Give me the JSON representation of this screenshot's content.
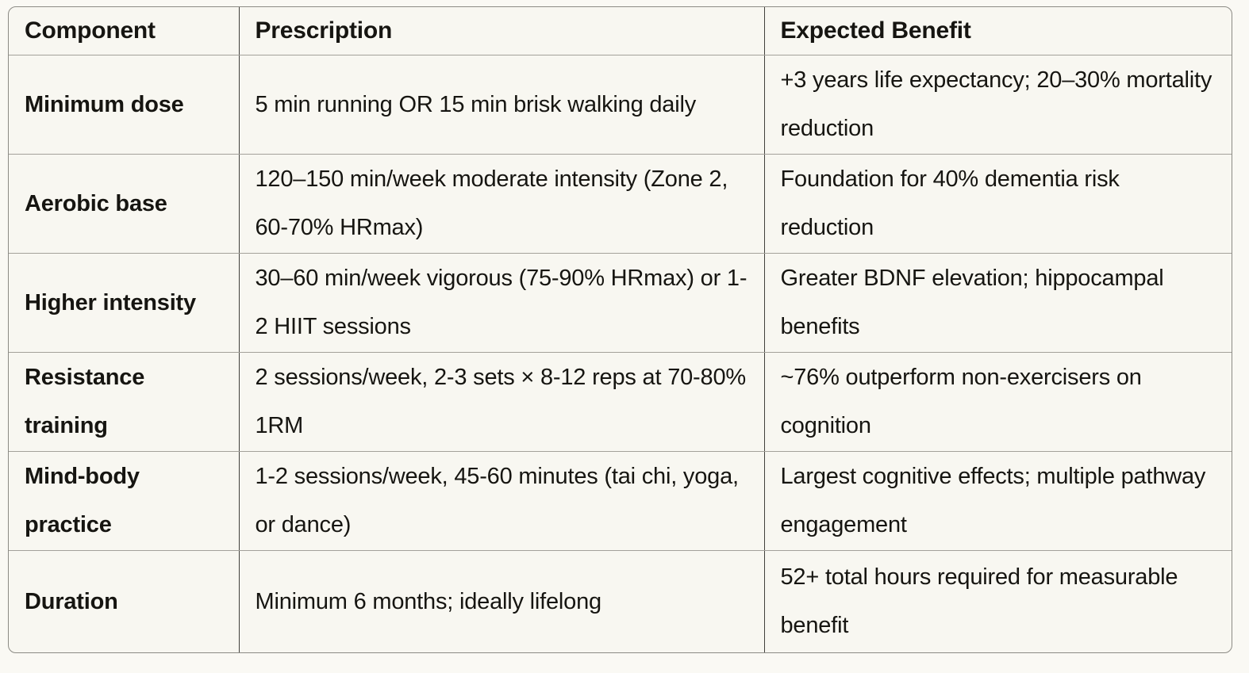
{
  "page": {
    "background_color": "#faf9f4",
    "text_color": "#161511",
    "table_outer_border_color": "#8c8b85",
    "row_border_color": "#a3a19a",
    "column_border_color": "#41403c",
    "cell_background_color": "#f8f7f1"
  },
  "table": {
    "columns": [
      {
        "label": "Component"
      },
      {
        "label": "Prescription"
      },
      {
        "label": "Expected Benefit"
      }
    ],
    "rows": [
      {
        "component": "Minimum dose",
        "prescription": "5 min running OR 15 min brisk walking daily",
        "benefit": "+3 years life expectancy; 20–30% mortality reduction"
      },
      {
        "component": "Aerobic base",
        "prescription": "120–150 min/week moderate intensity (Zone 2, 60-70% HRmax)",
        "benefit": "Foundation for 40% dementia risk reduction"
      },
      {
        "component": "Higher intensity",
        "prescription": "30–60 min/week vigorous (75-90% HRmax) or 1-2 HIIT sessions",
        "benefit": "Greater BDNF elevation; hippocampal benefits"
      },
      {
        "component": "Resistance training",
        "prescription": "2 sessions/week, 2-3 sets × 8-12 reps at 70-80% 1RM",
        "benefit": "~76% outperform non-exercisers on cognition"
      },
      {
        "component": "Mind-body practice",
        "prescription": "1-2 sessions/week, 45-60 minutes (tai chi, yoga, or dance)",
        "benefit": "Largest cognitive effects; multiple pathway engagement"
      },
      {
        "component": "Duration",
        "prescription": "Minimum 6 months; ideally lifelong",
        "benefit": "52+ total hours required for measurable benefit"
      }
    ]
  }
}
